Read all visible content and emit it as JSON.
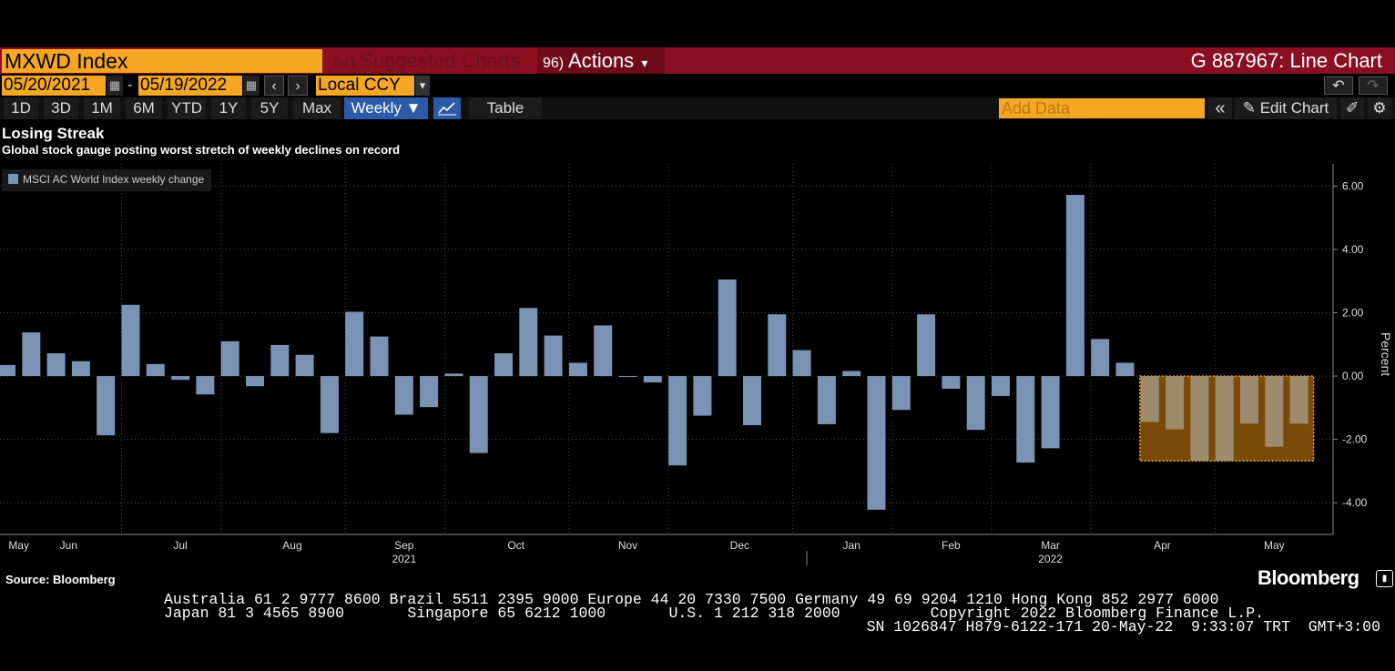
{
  "header": {
    "ticker": "MXWD Index",
    "suggested_num": "94)",
    "suggested_label": "Suggested Charts",
    "actions_num": "96)",
    "actions_label": "Actions",
    "actions_caret": "▾",
    "chart_title": "G 887967: Line Chart",
    "undo_icon": "undo-icon",
    "redo_icon": "redo-icon"
  },
  "dates": {
    "start": "05/20/2021",
    "end": "05/19/2022",
    "separator": "-",
    "currency": "Local CCY",
    "currency_caret": "▾"
  },
  "tabs": {
    "periods": [
      "1D",
      "3D",
      "1M",
      "6M",
      "YTD",
      "1Y",
      "5Y",
      "Max"
    ],
    "frequency": "Weekly ▼",
    "table": "Table",
    "add_data_placeholder": "Add Data",
    "collapse": "«",
    "edit_chart": "Edit Chart"
  },
  "footer": {
    "source": "Source: Bloomberg",
    "brand": "Bloomberg",
    "line1": "Australia 61 2 9777 8600 Brazil 5511 2395 9000 Europe 44 20 7330 7500 Germany 49 69 9204 1210 Hong Kong 852 2977 6000",
    "line2": "Japan 81 3 4565 8900       Singapore 65 6212 1000       U.S. 1 212 318 2000          Copyright 2022 Bloomberg Finance L.P.",
    "line3": "SN 1026847 H879-6122-171 20-May-22  9:33:07 TRT  GMT+3:00"
  },
  "colors": {
    "bar": "#7a93b4",
    "highlight_fill": "#7a4a08",
    "highlight_border": "#f5a623",
    "highlight_bar": "#9e8b6e",
    "accent": "#f5a623",
    "header_red": "#8a0f22"
  },
  "chart_data": {
    "type": "bar",
    "title": "Losing Streak",
    "subtitle": "Global stock gauge posting worst stretch of weekly declines on record",
    "legend": "MSCI AC World Index weekly change",
    "ylabel": "Percent",
    "ylim": [
      -5,
      6.7
    ],
    "yticks": [
      6,
      4,
      2,
      0,
      -2,
      -4
    ],
    "ytick_labels": [
      "6.00",
      "4.00",
      "2.00",
      "0.00",
      "-2.00",
      "-4.00"
    ],
    "y_axis_side": "right",
    "month_labels": [
      "May",
      "Jun",
      "Jul",
      "Aug",
      "Sep",
      "Oct",
      "Nov",
      "Dec",
      "Jan",
      "Feb",
      "Mar",
      "Apr",
      "May"
    ],
    "month_weeks": [
      0.5,
      2.5,
      7,
      11.5,
      16,
      20.5,
      25,
      29.5,
      34,
      38,
      42,
      46.5,
      51
    ],
    "year_labels": [
      "2021",
      "2022"
    ],
    "year_weeks": [
      16,
      42
    ],
    "values": [
      0.35,
      1.38,
      0.72,
      0.47,
      -1.87,
      2.25,
      0.38,
      -0.12,
      -0.58,
      1.1,
      -0.32,
      0.98,
      0.67,
      -1.8,
      2.03,
      1.25,
      -1.22,
      -0.98,
      0.08,
      -2.43,
      0.72,
      2.15,
      1.28,
      0.42,
      1.6,
      -0.03,
      -0.2,
      -2.82,
      -1.25,
      3.05,
      -1.55,
      1.95,
      0.82,
      -1.52,
      0.16,
      -4.22,
      -1.07,
      1.95,
      -0.4,
      -1.7,
      -0.63,
      -2.73,
      -2.28,
      5.72,
      1.17,
      0.42,
      -1.45,
      -1.68,
      -2.68,
      -2.68,
      -1.5,
      -2.23,
      -1.5
    ],
    "highlight_from_week": 46,
    "highlight_to_week": 52
  }
}
